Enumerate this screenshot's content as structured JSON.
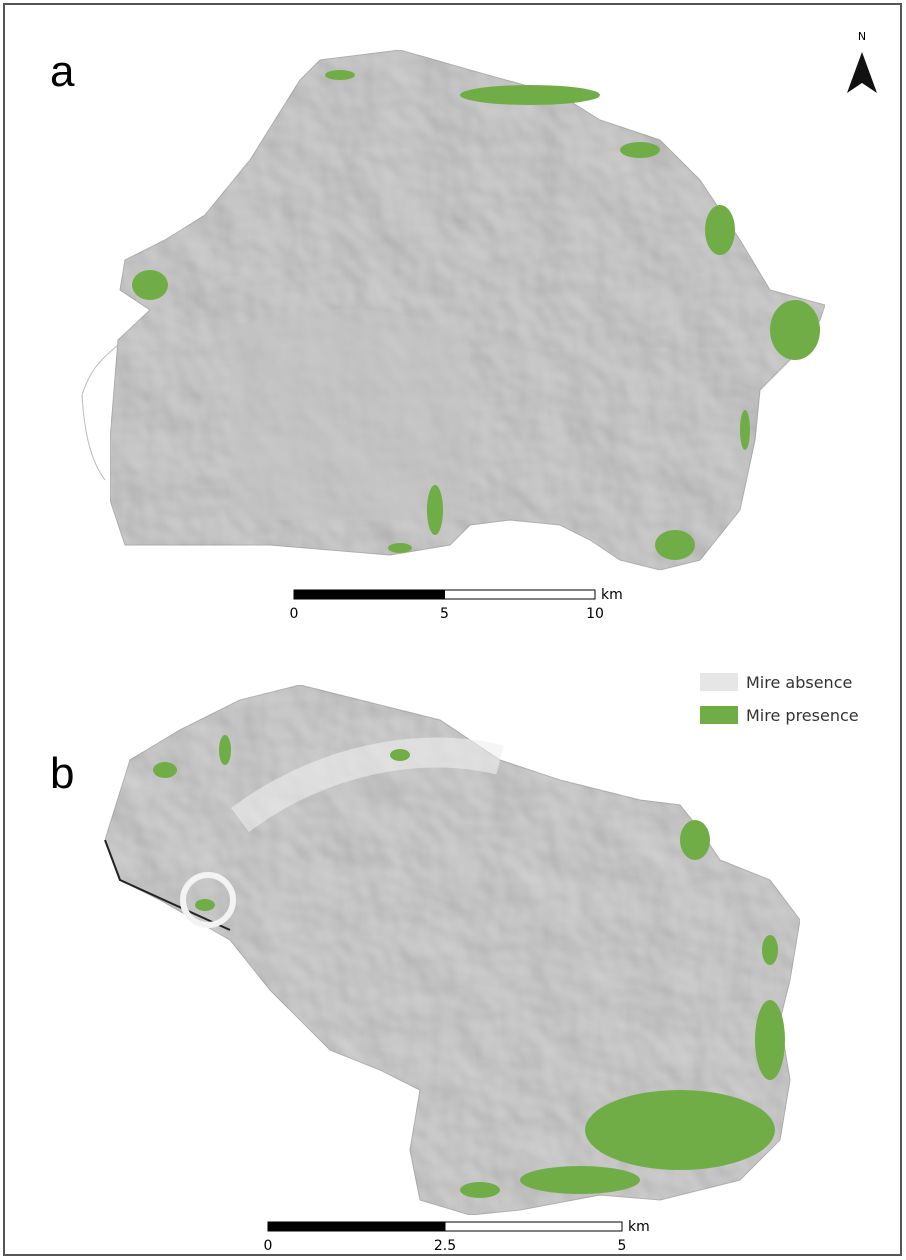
{
  "panels": [
    {
      "label": "a",
      "scale": {
        "ticks": [
          0,
          5,
          10
        ],
        "unit": "km"
      }
    },
    {
      "label": "b",
      "scale": {
        "ticks": [
          0,
          2.5,
          5
        ],
        "unit": "km"
      }
    }
  ],
  "north": "N",
  "legend": [
    {
      "label": "Mire absence",
      "color": "#e6e6e6"
    },
    {
      "label": "Mire presence",
      "color": "#70ad47"
    }
  ]
}
